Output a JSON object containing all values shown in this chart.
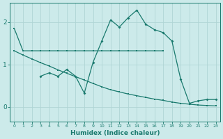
{
  "lineA_x": [
    0,
    1,
    2,
    3,
    4,
    5,
    6,
    7,
    8,
    9,
    10,
    11,
    12,
    13,
    14,
    15,
    16,
    17
  ],
  "lineA_y": [
    1.85,
    1.32,
    1.32,
    1.32,
    1.32,
    1.32,
    1.32,
    1.32,
    1.32,
    1.32,
    1.32,
    1.32,
    1.32,
    1.32,
    1.32,
    1.32,
    1.32,
    1.32
  ],
  "lineB_x": [
    3,
    4,
    5,
    6,
    7,
    8,
    9,
    10,
    11,
    12,
    13,
    14,
    15,
    16,
    17,
    18,
    19,
    20,
    21,
    22,
    23
  ],
  "lineB_y": [
    0.72,
    0.8,
    0.72,
    0.88,
    0.72,
    0.32,
    1.05,
    1.55,
    2.05,
    1.88,
    2.1,
    2.28,
    1.95,
    1.82,
    1.75,
    1.55,
    0.65,
    0.08,
    0.14,
    0.17,
    0.17
  ],
  "lineC_x": [
    0,
    1,
    2,
    3,
    4,
    5,
    6,
    7,
    8,
    9,
    10,
    11,
    12,
    13,
    14,
    15,
    16,
    17,
    18,
    19,
    20,
    21,
    22,
    23
  ],
  "lineC_y": [
    1.32,
    1.22,
    1.13,
    1.04,
    0.96,
    0.87,
    0.79,
    0.71,
    0.63,
    0.55,
    0.47,
    0.4,
    0.35,
    0.3,
    0.26,
    0.22,
    0.18,
    0.15,
    0.11,
    0.08,
    0.06,
    0.04,
    0.03,
    0.02
  ],
  "color": "#1a7a6e",
  "bg_color": "#cceaea",
  "grid_color": "#b0d5d5",
  "xlabel": "Humidex (Indice chaleur)",
  "xlim": [
    -0.5,
    23.5
  ],
  "ylim": [
    -0.35,
    2.45
  ],
  "yticks": [
    0,
    1,
    2
  ],
  "xticks": [
    0,
    1,
    2,
    3,
    4,
    5,
    6,
    7,
    8,
    9,
    10,
    11,
    12,
    13,
    14,
    15,
    16,
    17,
    18,
    19,
    20,
    21,
    22,
    23
  ]
}
